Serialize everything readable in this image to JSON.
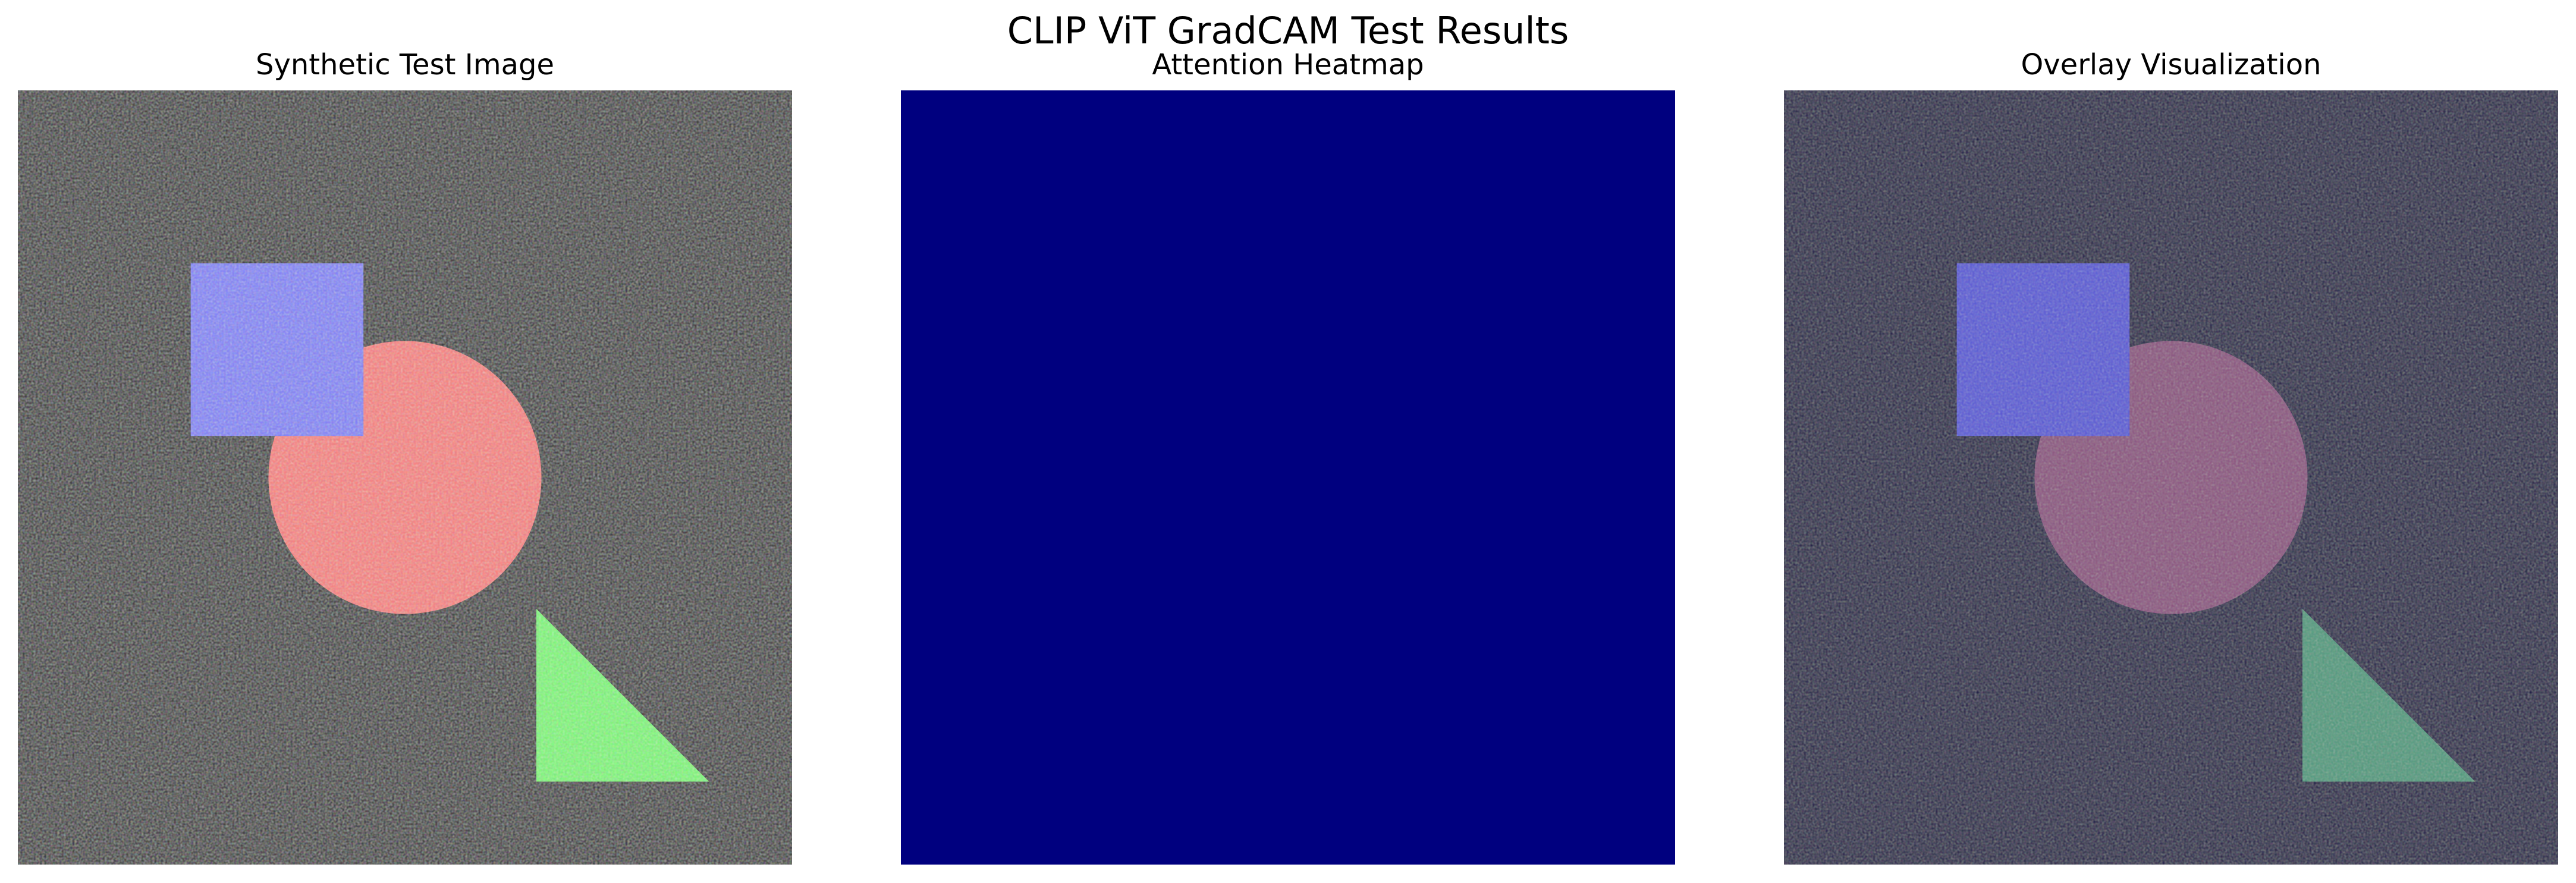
{
  "figure": {
    "title": "CLIP ViT GradCAM Test Results"
  },
  "panels": [
    {
      "title": "Synthetic Test Image",
      "background_color": "#1c1f1a",
      "shapes": {
        "square_color": "#7e80ff",
        "circle_color": "#ff7d7a",
        "triangle_color": "#78ff70"
      }
    },
    {
      "title": "Attention Heatmap",
      "background_color": "#00007f"
    },
    {
      "title": "Overlay Visualization",
      "background_color": "#0e0f42",
      "shapes": {
        "square_color": "#5455d6",
        "circle_color": "#8a4f7e",
        "triangle_color": "#4a9a7c"
      }
    }
  ]
}
